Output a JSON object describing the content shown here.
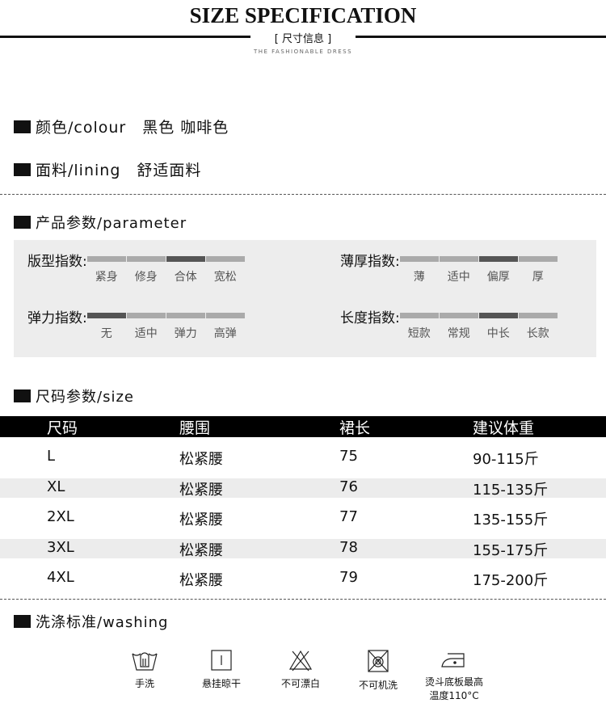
{
  "header": {
    "title": "SIZE SPECIFICATION",
    "subtitle": "[ 尺寸信息 ]",
    "tagline": "THE FASHIONABLE DRESS"
  },
  "colour": {
    "label": "颜色/colour",
    "value": "黑色 咖啡色"
  },
  "lining": {
    "label": "面料/lining",
    "value": "舒适面料"
  },
  "parameter": {
    "label": "产品参数/parameter",
    "indices": [
      {
        "label": "版型指数:",
        "options": [
          "紧身",
          "修身",
          "合体",
          "宽松"
        ],
        "selected": 2
      },
      {
        "label": "薄厚指数:",
        "options": [
          "薄",
          "适中",
          "偏厚",
          "厚"
        ],
        "selected": 2
      },
      {
        "label": "弹力指数:",
        "options": [
          "无",
          "适中",
          "弹力",
          "高弹"
        ],
        "selected": 0
      },
      {
        "label": "长度指数:",
        "options": [
          "短款",
          "常规",
          "中长",
          "长款"
        ],
        "selected": 2
      }
    ]
  },
  "size": {
    "label": "尺码参数/size",
    "headers": [
      "尺码",
      "腰围",
      "裙长",
      "建议体重"
    ],
    "rows": [
      [
        "L",
        "松紧腰",
        "75",
        "90-115斤"
      ],
      [
        "XL",
        "松紧腰",
        "76",
        "115-135斤"
      ],
      [
        "2XL",
        "松紧腰",
        "77",
        "135-155斤"
      ],
      [
        "3XL",
        "松紧腰",
        "78",
        "155-175斤"
      ],
      [
        "4XL",
        "松紧腰",
        "79",
        "175-200斤"
      ]
    ]
  },
  "washing": {
    "label": "洗涤标准/washing",
    "items": [
      {
        "icon": "hand-wash-icon",
        "label": "手洗"
      },
      {
        "icon": "hang-dry-icon",
        "label": "悬挂晾干"
      },
      {
        "icon": "no-bleach-icon",
        "label": "不可漂白"
      },
      {
        "icon": "no-machine-wash-icon",
        "label": "不可机洗"
      },
      {
        "icon": "iron-icon",
        "label": "烫斗底板最高",
        "label2": "温度110°C"
      }
    ]
  }
}
